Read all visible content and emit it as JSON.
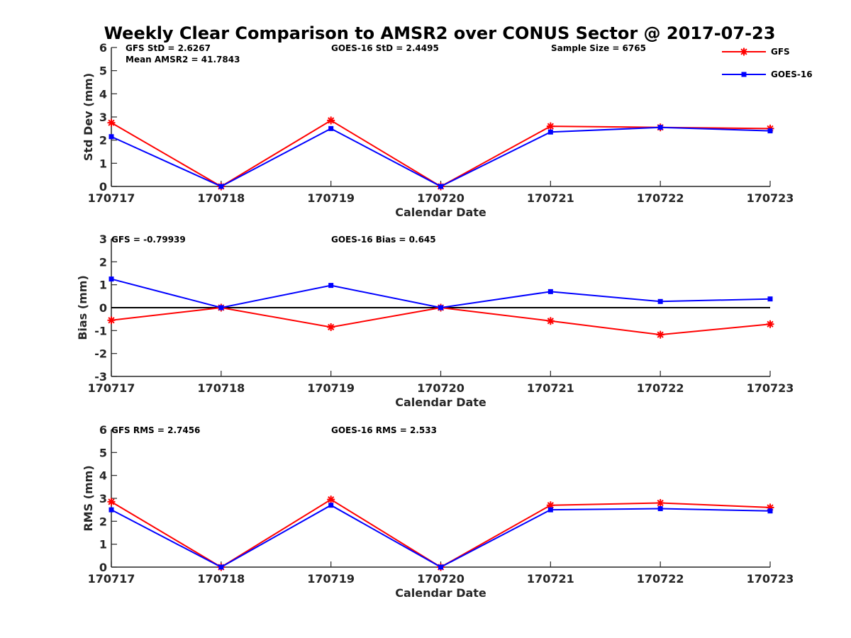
{
  "figure_title": "Weekly Clear Comparison to AMSR2 over CONUS Sector @ 2017-07-23",
  "legend": [
    {
      "name": "GFS",
      "color": "#ff0000",
      "marker": "asterisk"
    },
    {
      "name": "GOES-16",
      "color": "#0000ff",
      "marker": "square"
    }
  ],
  "chart_data": [
    {
      "type": "line",
      "categories": [
        "170717",
        "170718",
        "170719",
        "170720",
        "170721",
        "170722",
        "170723"
      ],
      "xlabel": "Calendar Date",
      "ylabel": "Std Dev (mm)",
      "ylim": [
        0,
        6
      ],
      "yticks": [
        "0",
        "1",
        "2",
        "3",
        "4",
        "5",
        "6"
      ],
      "annotations": [
        "GFS StD = 2.6267",
        "Mean AMSR2 = 41.7843",
        "GOES-16 StD = 2.4495",
        "Sample Size = 6765"
      ],
      "series": [
        {
          "name": "GFS",
          "values": [
            2.75,
            0.0,
            2.85,
            0.0,
            2.6,
            2.55,
            2.5
          ]
        },
        {
          "name": "GOES-16",
          "values": [
            2.15,
            0.0,
            2.5,
            0.0,
            2.35,
            2.55,
            2.4
          ]
        }
      ]
    },
    {
      "type": "line",
      "categories": [
        "170717",
        "170718",
        "170719",
        "170720",
        "170721",
        "170722",
        "170723"
      ],
      "xlabel": "Calendar Date",
      "ylabel": "Bias (mm)",
      "ylim": [
        -3,
        3
      ],
      "yticks": [
        "-3",
        "-2",
        "-1",
        "0",
        "1",
        "2",
        "3"
      ],
      "zero_line": true,
      "annotations": [
        "GFS = -0.79939",
        "GOES-16 Bias  = 0.645"
      ],
      "series": [
        {
          "name": "GFS",
          "values": [
            -0.55,
            0.0,
            -0.85,
            0.0,
            -0.58,
            -1.18,
            -0.72
          ]
        },
        {
          "name": "GOES-16",
          "values": [
            1.25,
            0.0,
            0.97,
            0.0,
            0.7,
            0.27,
            0.38
          ]
        }
      ]
    },
    {
      "type": "line",
      "categories": [
        "170717",
        "170718",
        "170719",
        "170720",
        "170721",
        "170722",
        "170723"
      ],
      "xlabel": "Calendar Date",
      "ylabel": "RMS (mm)",
      "ylim": [
        0,
        6
      ],
      "yticks": [
        "0",
        "1",
        "2",
        "3",
        "4",
        "5",
        "6"
      ],
      "annotations": [
        "GFS RMS = 2.7456",
        "GOES-16 RMS = 2.533"
      ],
      "series": [
        {
          "name": "GFS",
          "values": [
            2.85,
            0.0,
            2.95,
            0.0,
            2.7,
            2.8,
            2.6
          ]
        },
        {
          "name": "GOES-16",
          "values": [
            2.5,
            0.0,
            2.7,
            0.0,
            2.5,
            2.55,
            2.45
          ]
        }
      ]
    }
  ]
}
